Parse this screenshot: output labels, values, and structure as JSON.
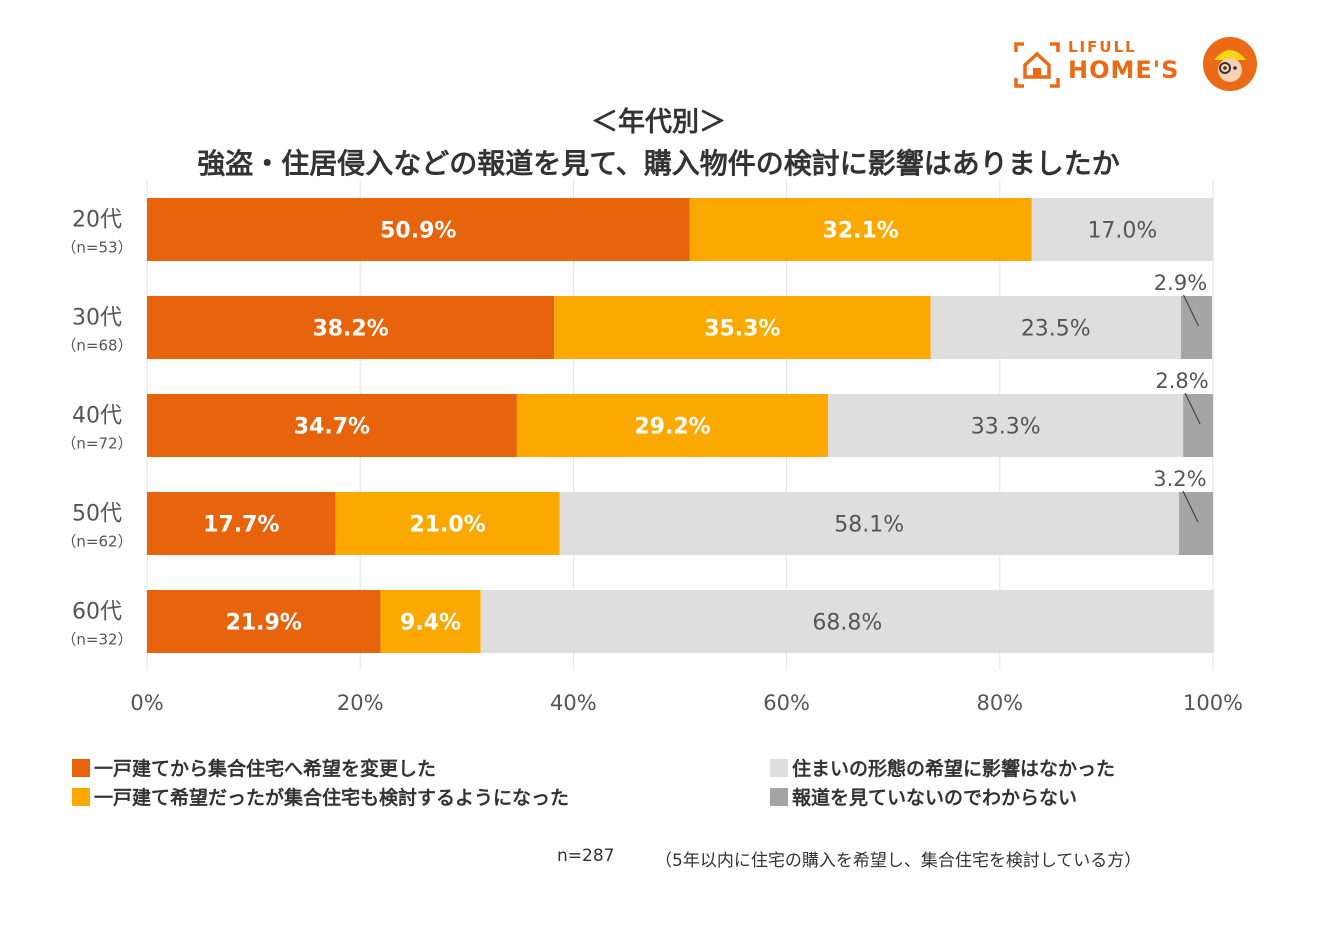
{
  "logo": {
    "line1": "LIFULL",
    "line2": "HOME'S"
  },
  "title_line1": "＜年代別＞",
  "title_line2": "強盗・住居侵入などの報道を見て、購入物件の検討に影響はありましたか",
  "colors": {
    "orange": "#e8640c",
    "yellow": "#fba900",
    "lightgray": "#dedede",
    "darkgray": "#a5a5a5"
  },
  "chart_data": {
    "type": "bar",
    "orientation": "horizontal-stacked-100",
    "title": "強盗・住居侵入などの報道を見て、購入物件の検討に影響はありましたか",
    "categories": [
      "20代",
      "30代",
      "40代",
      "50代",
      "60代"
    ],
    "sample_sizes": [
      "（n=53）",
      "（n=68）",
      "（n=72）",
      "（n=62）",
      "（n=32）"
    ],
    "series": [
      {
        "name": "一戸建てから集合住宅へ希望を変更した",
        "color": "#e8640c",
        "label_color": "#ffffff",
        "label_bold": true,
        "values": [
          50.9,
          38.2,
          34.7,
          17.7,
          21.9
        ],
        "labels": [
          "50.9%",
          "38.2%",
          "34.7%",
          "17.7%",
          "21.9%"
        ]
      },
      {
        "name": "一戸建て希望だったが集合住宅も検討するようになった",
        "color": "#fba900",
        "label_color": "#ffffff",
        "label_bold": true,
        "values": [
          32.1,
          35.3,
          29.2,
          21.0,
          9.4
        ],
        "labels": [
          "32.1%",
          "35.3%",
          "29.2%",
          "21.0%",
          "9.4%"
        ]
      },
      {
        "name": "住まいの形態の希望に影響はなかった",
        "color": "#dedede",
        "label_color": "#555555",
        "label_bold": false,
        "values": [
          17.0,
          23.5,
          33.3,
          58.1,
          68.8
        ],
        "labels": [
          "17.0%",
          "23.5%",
          "33.3%",
          "58.1%",
          "68.8%"
        ]
      },
      {
        "name": "報道を見ていないのでわからない",
        "color": "#a5a5a5",
        "label_color": "#555555",
        "label_bold": false,
        "values": [
          0,
          2.9,
          2.8,
          3.2,
          0
        ],
        "labels": [
          "",
          "2.9%",
          "2.8%",
          "3.2%",
          ""
        ]
      }
    ],
    "xlim": [
      0,
      100
    ],
    "xticks": [
      "0%",
      "20%",
      "40%",
      "60%",
      "80%",
      "100%"
    ],
    "grid": true,
    "legend_position": "bottom"
  },
  "legend": [
    "一戸建てから集合住宅へ希望を変更した",
    "一戸建て希望だったが集合住宅も検討するようになった",
    "住まいの形態の希望に影響はなかった",
    "報道を見ていないのでわからない"
  ],
  "note_n": "n=287",
  "note_desc": "（5年以内に住宅の購入を希望し、集合住宅を検討している方）"
}
